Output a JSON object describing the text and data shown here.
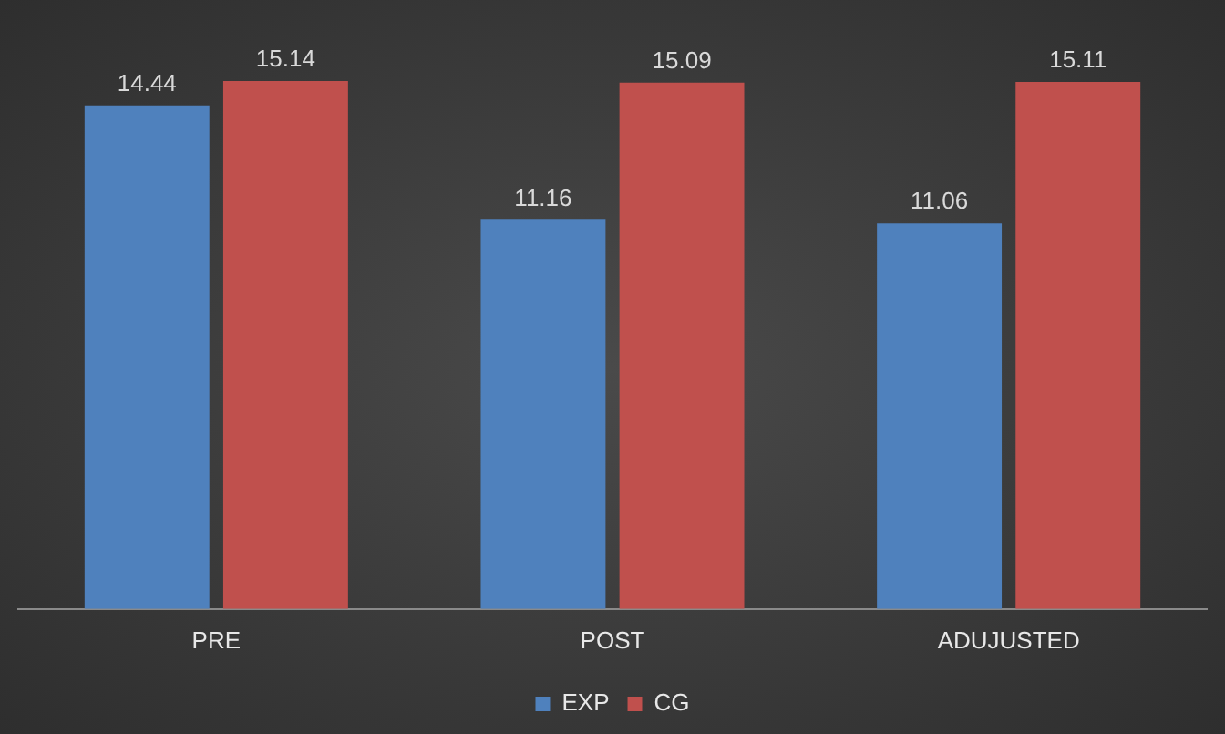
{
  "chart_data": {
    "type": "bar",
    "categories": [
      "PRE",
      "POST",
      "ADUJUSTED"
    ],
    "series": [
      {
        "name": "EXP",
        "color": "#4f81bd",
        "values": [
          14.44,
          11.16,
          11.06
        ]
      },
      {
        "name": "CG",
        "color": "#c0504d",
        "values": [
          15.14,
          15.09,
          15.11
        ]
      }
    ],
    "data_labels": true,
    "legend": "bottom",
    "grid": false
  }
}
